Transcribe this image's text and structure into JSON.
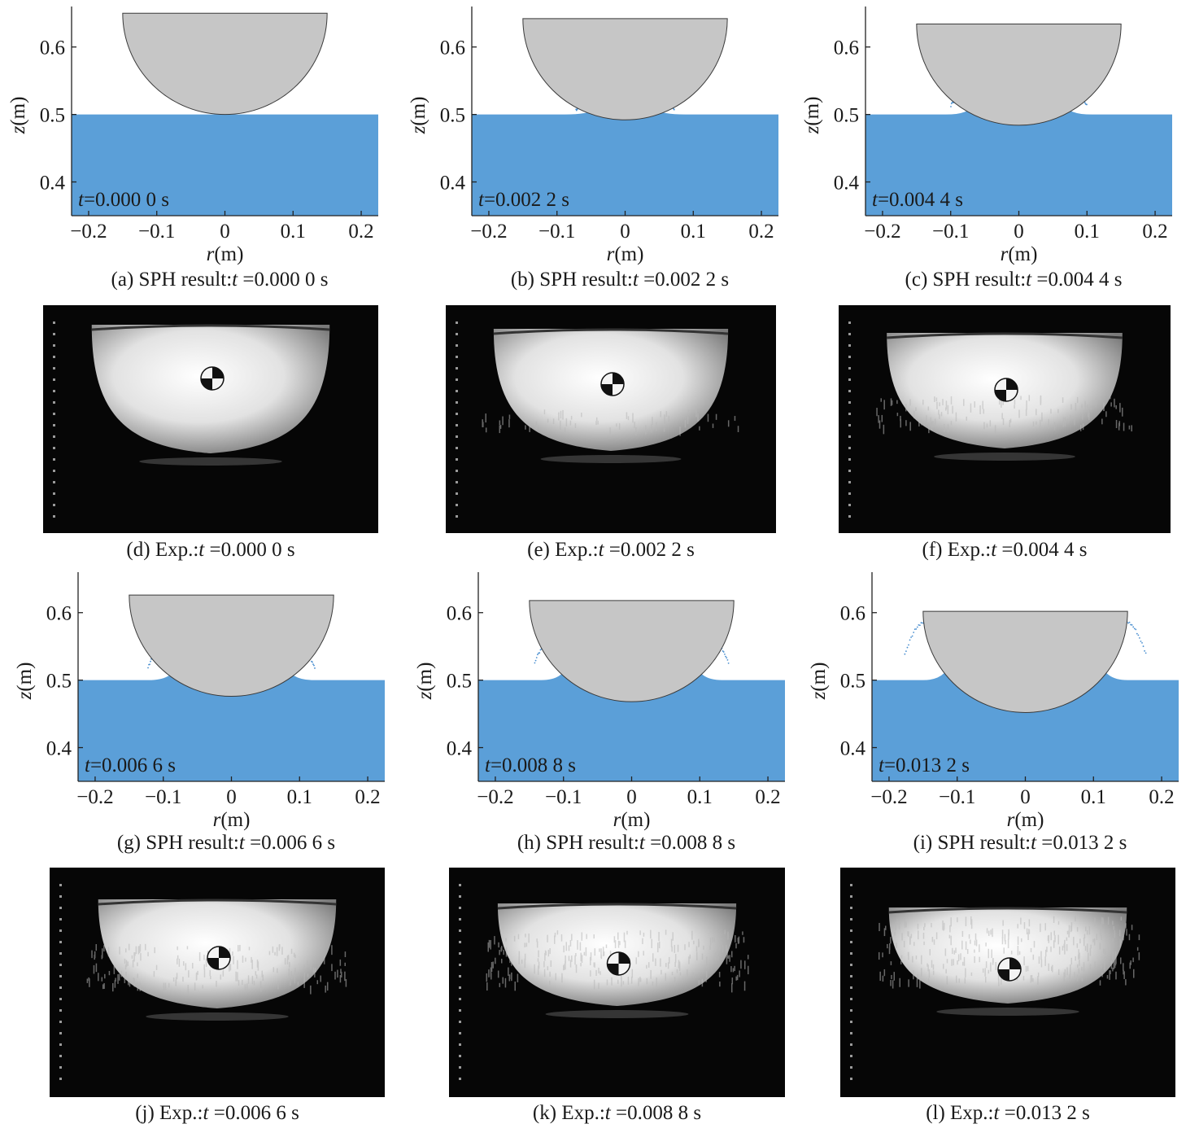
{
  "axis": {
    "xlabel_var": "r",
    "xlabel_unit": "(m)",
    "ylabel_var": "z",
    "ylabel_unit": "(m)",
    "x_ticks": [
      "−0.2",
      "−0.1",
      "0",
      "0.1",
      "0.2"
    ],
    "y_ticks": [
      "0.6",
      "0.5",
      "0.4"
    ],
    "time_var": "t"
  },
  "colors": {
    "water": "#5b9fd8",
    "sphere": "#c6c6c6",
    "sphere_edge": "#3a3a3a",
    "spray": "#4a8fd0"
  },
  "sph_panels": [
    {
      "id": "a",
      "caption_prefix": "(a) SPH result:",
      "caption_time": " =0.000 0 s",
      "time_label": "=0.000 0 s",
      "t": 0.0,
      "sphere_bottom_z": 0.5
    },
    {
      "id": "b",
      "caption_prefix": "(b) SPH result:",
      "caption_time": " =0.002 2 s",
      "time_label": "=0.002 2 s",
      "t": 0.0022,
      "sphere_bottom_z": 0.492
    },
    {
      "id": "c",
      "caption_prefix": "(c) SPH result:",
      "caption_time": " =0.004 4 s",
      "time_label": "=0.004 4 s",
      "t": 0.0044,
      "sphere_bottom_z": 0.484
    },
    {
      "id": "g",
      "caption_prefix": "(g) SPH result:",
      "caption_time": " =0.006 6 s",
      "time_label": "=0.006 6 s",
      "t": 0.0066,
      "sphere_bottom_z": 0.476
    },
    {
      "id": "h",
      "caption_prefix": "(h) SPH result:",
      "caption_time": " =0.008 8 s",
      "time_label": "=0.008 8 s",
      "t": 0.0088,
      "sphere_bottom_z": 0.468
    },
    {
      "id": "i",
      "caption_prefix": "(i) SPH result:",
      "caption_time": " =0.013 2 s",
      "time_label": "=0.013 2 s",
      "t": 0.0132,
      "sphere_bottom_z": 0.452
    }
  ],
  "exp_panels": [
    {
      "id": "d",
      "caption_prefix": "(d) Exp.:",
      "caption_time": " =0.000 0 s",
      "stage": 0
    },
    {
      "id": "e",
      "caption_prefix": "(e) Exp.:",
      "caption_time": " =0.002 2 s",
      "stage": 1
    },
    {
      "id": "f",
      "caption_prefix": "(f) Exp.:",
      "caption_time": " =0.004 4 s",
      "stage": 2
    },
    {
      "id": "j",
      "caption_prefix": "(j) Exp.:",
      "caption_time": " =0.006 6 s",
      "stage": 3
    },
    {
      "id": "k",
      "caption_prefix": "(k) Exp.:",
      "caption_time": " =0.008 8 s",
      "stage": 4
    },
    {
      "id": "l",
      "caption_prefix": "(l) Exp.:",
      "caption_time": " =0.013 2 s",
      "stage": 5
    }
  ]
}
